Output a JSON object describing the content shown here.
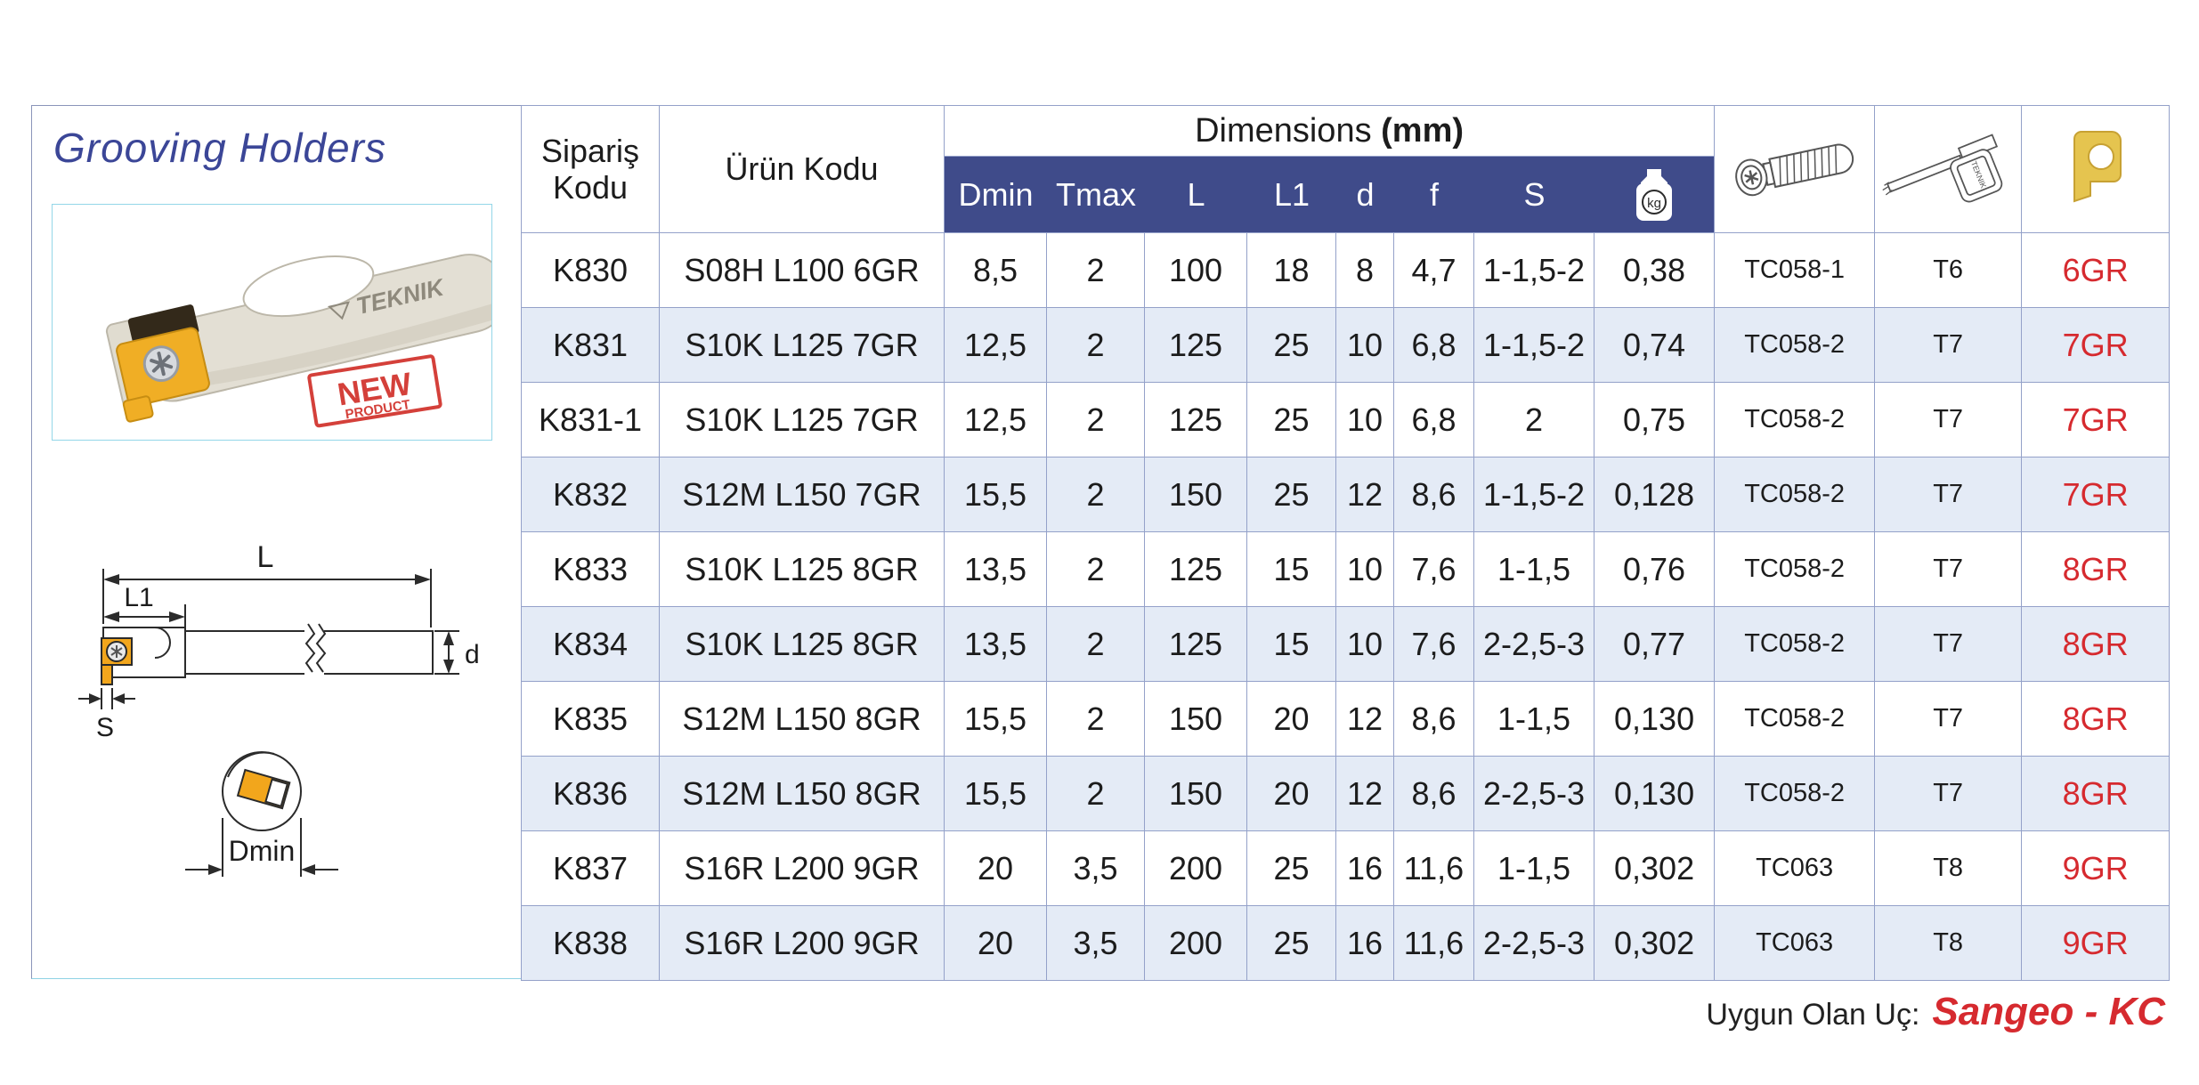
{
  "title": "Grooving Holders",
  "photo": {
    "brand": "TEKNIK",
    "stamp_line1": "NEW",
    "stamp_line2": "PRODUCT"
  },
  "diagram": {
    "l": "L",
    "l1": "L1",
    "d": "d",
    "s": "S",
    "dmin": "Dmin"
  },
  "table": {
    "headers": {
      "order_code": "Sipariş Kodu",
      "product_code": "Ürün Kodu",
      "dimensions": "Dimensions",
      "dimensions_unit": "(mm)",
      "sub_columns": [
        "Dmin",
        "Tmax",
        "L",
        "L1",
        "d",
        "f",
        "S"
      ],
      "weight_unit": "kg",
      "screw_image": "clamping-screw",
      "wrench_image": "torque-wrench",
      "insert_image": "grooving-insert"
    },
    "rows": [
      [
        "K830",
        "S08H L100 6GR",
        "8,5",
        "2",
        "100",
        "18",
        "8",
        "4,7",
        "1-1,5-2",
        "0,38",
        "TC058-1",
        "T6",
        "6GR"
      ],
      [
        "K831",
        "S10K L125 7GR",
        "12,5",
        "2",
        "125",
        "25",
        "10",
        "6,8",
        "1-1,5-2",
        "0,74",
        "TC058-2",
        "T7",
        "7GR"
      ],
      [
        "K831-1",
        "S10K L125 7GR",
        "12,5",
        "2",
        "125",
        "25",
        "10",
        "6,8",
        "2",
        "0,75",
        "TC058-2",
        "T7",
        "7GR"
      ],
      [
        "K832",
        "S12M L150 7GR",
        "15,5",
        "2",
        "150",
        "25",
        "12",
        "8,6",
        "1-1,5-2",
        "0,128",
        "TC058-2",
        "T7",
        "7GR"
      ],
      [
        "K833",
        "S10K L125 8GR",
        "13,5",
        "2",
        "125",
        "15",
        "10",
        "7,6",
        "1-1,5",
        "0,76",
        "TC058-2",
        "T7",
        "8GR"
      ],
      [
        "K834",
        "S10K L125 8GR",
        "13,5",
        "2",
        "125",
        "15",
        "10",
        "7,6",
        "2-2,5-3",
        "0,77",
        "TC058-2",
        "T7",
        "8GR"
      ],
      [
        "K835",
        "S12M L150 8GR",
        "15,5",
        "2",
        "150",
        "20",
        "12",
        "8,6",
        "1-1,5",
        "0,130",
        "TC058-2",
        "T7",
        "8GR"
      ],
      [
        "K836",
        "S12M L150 8GR",
        "15,5",
        "2",
        "150",
        "20",
        "12",
        "8,6",
        "2-2,5-3",
        "0,130",
        "TC058-2",
        "T7",
        "8GR"
      ],
      [
        "K837",
        "S16R L200 9GR",
        "20",
        "3,5",
        "200",
        "25",
        "16",
        "11,6",
        "1-1,5",
        "0,302",
        "TC063",
        "T8",
        "9GR"
      ],
      [
        "K838",
        "S16R L200 9GR",
        "20",
        "3,5",
        "200",
        "25",
        "16",
        "11,6",
        "2-2,5-3",
        "0,302",
        "TC063",
        "T8",
        "9GR"
      ]
    ]
  },
  "footer": {
    "label": "Uygun Olan Uç:",
    "value": "Sangeo - KC"
  },
  "colors": {
    "header_band": "#3f4b8a",
    "row_alt": "#e4ebf6",
    "grid_line": "#94a1c9",
    "title_blue": "#3b4697",
    "accent_red": "#d62a2f",
    "insert_yellow": "#f0ae25"
  }
}
